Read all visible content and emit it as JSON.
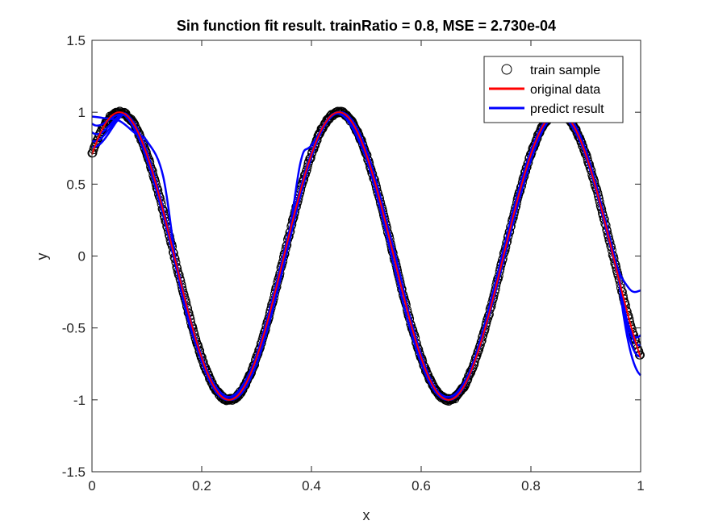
{
  "chart_data": {
    "type": "line",
    "title": "Sin function fit result. trainRatio = 0.8, MSE = 2.730e-04",
    "xlabel": "x",
    "ylabel": "y",
    "xlim": [
      0,
      1
    ],
    "ylim": [
      -1.5,
      1.5
    ],
    "x_ticks": [
      {
        "value": 0,
        "label": "0"
      },
      {
        "value": 0.2,
        "label": "0.2"
      },
      {
        "value": 0.4,
        "label": "0.4"
      },
      {
        "value": 0.6,
        "label": "0.6"
      },
      {
        "value": 0.8,
        "label": "0.8"
      },
      {
        "value": 1,
        "label": "1"
      }
    ],
    "y_ticks": [
      {
        "value": -1.5,
        "label": "-1.5"
      },
      {
        "value": -1,
        "label": "-1"
      },
      {
        "value": -0.5,
        "label": "-0.5"
      },
      {
        "value": 0,
        "label": "0"
      },
      {
        "value": 0.5,
        "label": "0.5"
      },
      {
        "value": 1,
        "label": "1"
      },
      {
        "value": 1.5,
        "label": "1.5"
      }
    ],
    "grid": false,
    "legend_position": "top-right",
    "legend": [
      {
        "label": "train sample",
        "style": "marker"
      },
      {
        "label": "original data",
        "style": "line"
      },
      {
        "label": "predict result",
        "style": "line"
      }
    ],
    "function": "y = sin(5*pi*x + pi/4)",
    "series": [
      {
        "name": "original data",
        "color": "#ff0000",
        "x": [
          0,
          0.05,
          0.1,
          0.15,
          0.2,
          0.25,
          0.3,
          0.35,
          0.4,
          0.45,
          0.5,
          0.55,
          0.6,
          0.65,
          0.7,
          0.75,
          0.8,
          0.85,
          0.9,
          0.95,
          1.0
        ],
        "y": [
          0.707,
          1.0,
          0.707,
          0.0,
          -0.707,
          -1.0,
          -0.707,
          0.0,
          0.707,
          1.0,
          0.707,
          0.0,
          -0.707,
          -1.0,
          -0.707,
          0.0,
          0.707,
          1.0,
          0.707,
          0.0,
          -0.707
        ]
      },
      {
        "name": "predict result",
        "color": "#0000ff",
        "x": [
          0,
          0.02,
          0.05,
          0.08,
          0.1,
          0.13,
          0.16,
          0.2,
          0.25,
          0.3,
          0.35,
          0.38,
          0.4,
          0.45,
          0.5,
          0.55,
          0.6,
          0.65,
          0.7,
          0.75,
          0.8,
          0.85,
          0.9,
          0.95,
          0.98,
          1.0
        ],
        "y": [
          0.97,
          0.96,
          0.94,
          0.85,
          0.8,
          0.55,
          -0.2,
          -0.72,
          -0.98,
          -0.7,
          -0.05,
          0.65,
          0.77,
          0.99,
          0.68,
          0.05,
          -0.72,
          -0.98,
          -0.7,
          0.0,
          0.7,
          0.98,
          0.7,
          0.0,
          -0.23,
          -0.24
        ]
      }
    ],
    "train_sample": {
      "name": "train sample",
      "color": "#000000",
      "marker": "circle-open",
      "count": 800
    }
  }
}
